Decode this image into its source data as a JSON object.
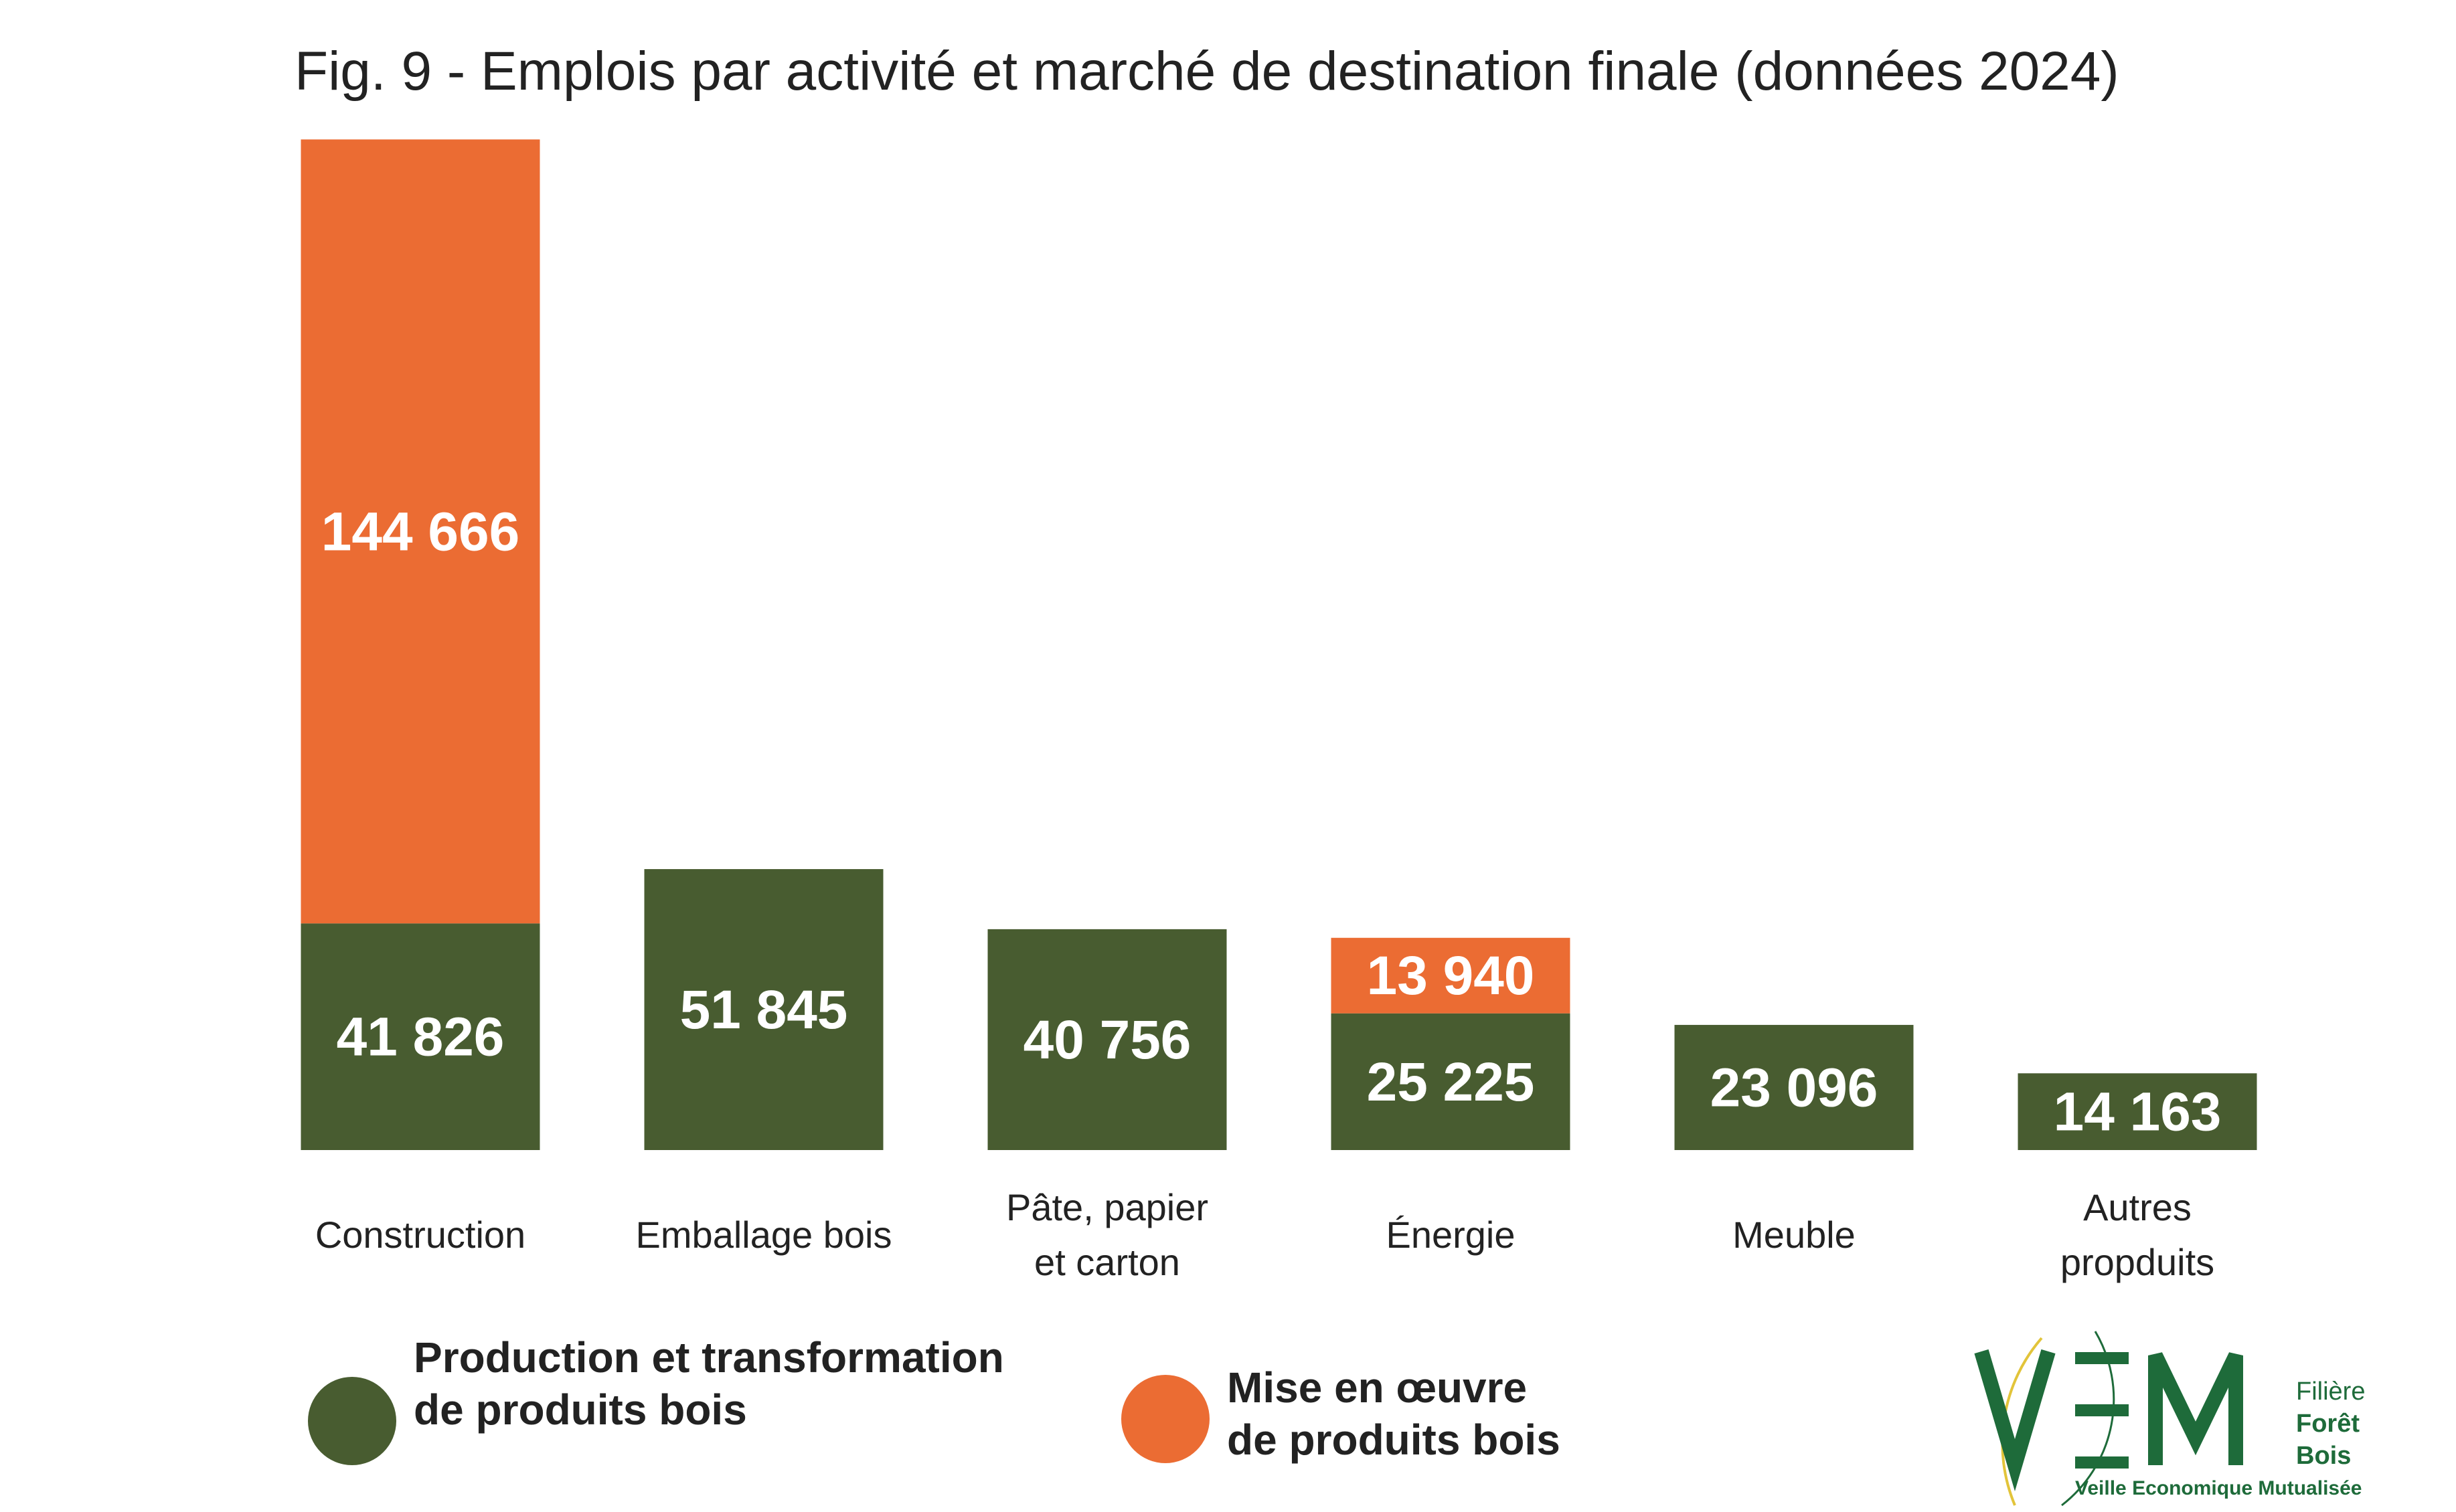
{
  "chart_data": {
    "type": "bar",
    "stacked": true,
    "title": "Fig. 9 - Emplois par activité et marché de destination finale (données 2024)",
    "categories": [
      [
        "Construction"
      ],
      [
        "Emballage bois"
      ],
      [
        "Pâte, papier",
        "et carton"
      ],
      [
        "Énergie"
      ],
      [
        "Meuble"
      ],
      [
        "Autres",
        "propduits"
      ]
    ],
    "series": [
      {
        "name": "Production et transformation de produits bois",
        "name_lines": [
          "Production et transformation",
          "de produits bois"
        ],
        "color": "#485c30",
        "values": [
          41826,
          51845,
          40756,
          25225,
          23096,
          14163
        ],
        "labels": [
          "41 826",
          "51 845",
          "40 756",
          "25 225",
          "23 096",
          "14 163"
        ]
      },
      {
        "name": "Mise en œuvre de produits bois",
        "name_lines": [
          "Mise en œuvre",
          "de produits bois"
        ],
        "color": "#eb6c33",
        "values": [
          144666,
          null,
          null,
          13940,
          null,
          null
        ],
        "labels": [
          "144 666",
          "",
          "",
          "13 940",
          "",
          ""
        ]
      }
    ],
    "ylim": [
      0,
      190000
    ],
    "grid": false,
    "legend_position": "bottom"
  },
  "logo": {
    "letters": "VEM",
    "side_lines": [
      "Filière",
      "Forêt",
      "Bois"
    ],
    "tagline": "Veille Economique Mutualisée",
    "color": "#1e6b3a",
    "accent": "#e2c43a"
  }
}
